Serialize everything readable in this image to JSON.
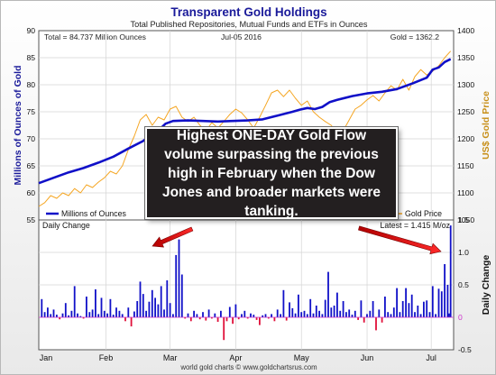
{
  "chart_data": {
    "title": "Transparent Gold Holdings",
    "subtitle": "Total Published Repositories, Mutual Funds and ETFs in Ounces",
    "info": {
      "total": "Total = 84.737 Million Ounces",
      "date": "Jul-05  2016",
      "gold": "Gold = 1362.2",
      "latest": "Latest = 1.415 M/oz"
    },
    "upper": {
      "type": "line",
      "ylabel_left": "Millions of Ounces of Gold",
      "ylabel_right": "US$ Gold Price",
      "yticks_left": [
        55,
        60,
        65,
        70,
        75,
        80,
        85,
        90
      ],
      "yticks_right": [
        1050,
        1100,
        1150,
        1200,
        1250,
        1300,
        1350,
        1400
      ],
      "ylim_left": [
        55,
        90
      ],
      "ylim_right": [
        1050,
        1400
      ],
      "colors": {
        "holdings": "#1010c8",
        "price": "#f5a623"
      },
      "legend": {
        "holdings": "Millions of Ounces",
        "price": "Gold Price"
      },
      "holdings_series": [
        [
          0,
          61.8
        ],
        [
          10,
          62.8
        ],
        [
          20,
          63.8
        ],
        [
          30,
          64.6
        ],
        [
          40,
          65.6
        ],
        [
          50,
          66.7
        ],
        [
          60,
          68.2
        ],
        [
          70,
          69.6
        ],
        [
          75,
          70.7
        ],
        [
          80,
          71.5
        ],
        [
          85,
          72.8
        ],
        [
          90,
          73.3
        ],
        [
          100,
          73.4
        ],
        [
          110,
          73.3
        ],
        [
          120,
          73.2
        ],
        [
          130,
          73.3
        ],
        [
          140,
          73.4
        ],
        [
          150,
          73.6
        ],
        [
          160,
          74.3
        ],
        [
          170,
          75.0
        ],
        [
          175,
          75.4
        ],
        [
          180,
          75.7
        ],
        [
          185,
          75.5
        ],
        [
          190,
          75.9
        ],
        [
          195,
          76.8
        ],
        [
          200,
          77.2
        ],
        [
          210,
          77.9
        ],
        [
          220,
          78.4
        ],
        [
          230,
          78.7
        ],
        [
          240,
          79.2
        ],
        [
          250,
          80.2
        ],
        [
          260,
          81.3
        ],
        [
          264,
          82.8
        ],
        [
          268,
          83.2
        ],
        [
          272,
          84.2
        ],
        [
          276,
          84.74
        ]
      ],
      "price_series": [
        [
          0,
          1075
        ],
        [
          4,
          1082
        ],
        [
          8,
          1095
        ],
        [
          12,
          1090
        ],
        [
          16,
          1100
        ],
        [
          20,
          1095
        ],
        [
          24,
          1108
        ],
        [
          28,
          1100
        ],
        [
          32,
          1115
        ],
        [
          36,
          1110
        ],
        [
          40,
          1120
        ],
        [
          44,
          1128
        ],
        [
          48,
          1140
        ],
        [
          52,
          1135
        ],
        [
          56,
          1150
        ],
        [
          60,
          1180
        ],
        [
          64,
          1205
        ],
        [
          68,
          1235
        ],
        [
          72,
          1245
        ],
        [
          76,
          1225
        ],
        [
          80,
          1240
        ],
        [
          84,
          1235
        ],
        [
          88,
          1255
        ],
        [
          92,
          1260
        ],
        [
          96,
          1240
        ],
        [
          100,
          1232
        ],
        [
          104,
          1240
        ],
        [
          108,
          1225
        ],
        [
          112,
          1215
        ],
        [
          116,
          1230
        ],
        [
          120,
          1220
        ],
        [
          124,
          1232
        ],
        [
          128,
          1245
        ],
        [
          132,
          1255
        ],
        [
          136,
          1248
        ],
        [
          140,
          1235
        ],
        [
          144,
          1220
        ],
        [
          148,
          1240
        ],
        [
          152,
          1262
        ],
        [
          156,
          1285
        ],
        [
          160,
          1290
        ],
        [
          164,
          1278
        ],
        [
          168,
          1290
        ],
        [
          172,
          1275
        ],
        [
          176,
          1262
        ],
        [
          180,
          1270
        ],
        [
          184,
          1250
        ],
        [
          188,
          1240
        ],
        [
          192,
          1232
        ],
        [
          196,
          1225
        ],
        [
          200,
          1210
        ],
        [
          204,
          1215
        ],
        [
          208,
          1235
        ],
        [
          212,
          1255
        ],
        [
          216,
          1262
        ],
        [
          220,
          1272
        ],
        [
          224,
          1280
        ],
        [
          228,
          1270
        ],
        [
          232,
          1285
        ],
        [
          236,
          1298
        ],
        [
          240,
          1290
        ],
        [
          244,
          1310
        ],
        [
          248,
          1290
        ],
        [
          252,
          1315
        ],
        [
          256,
          1328
        ],
        [
          260,
          1318
        ],
        [
          264,
          1325
        ],
        [
          268,
          1335
        ],
        [
          272,
          1350
        ],
        [
          276,
          1362.2
        ]
      ]
    },
    "lower": {
      "type": "bar",
      "label": "Daily Change",
      "ylabel_right": "Daily Change",
      "yticks": [
        -0.5,
        0,
        0.5,
        1,
        1.5
      ],
      "ytick_labels": [
        "-0.5",
        "0",
        "0.5",
        "1.0",
        "1.5"
      ],
      "ylim": [
        -0.5,
        1.5
      ],
      "colors": {
        "positive": "#1010c8",
        "negative": "#e0103a"
      },
      "bars": [
        [
          2,
          0.28
        ],
        [
          4,
          0.08
        ],
        [
          6,
          0.15
        ],
        [
          8,
          0.05
        ],
        [
          10,
          0.12
        ],
        [
          12,
          0.04
        ],
        [
          14,
          -0.03
        ],
        [
          16,
          0.06
        ],
        [
          18,
          0.22
        ],
        [
          20,
          0.03
        ],
        [
          22,
          0.1
        ],
        [
          24,
          0.48
        ],
        [
          26,
          0.06
        ],
        [
          28,
          0.02
        ],
        [
          30,
          -0.02
        ],
        [
          32,
          0.32
        ],
        [
          34,
          0.08
        ],
        [
          36,
          0.12
        ],
        [
          38,
          0.43
        ],
        [
          40,
          0.05
        ],
        [
          42,
          0.3
        ],
        [
          44,
          0.1
        ],
        [
          46,
          0.06
        ],
        [
          48,
          0.28
        ],
        [
          50,
          0.04
        ],
        [
          52,
          0.15
        ],
        [
          54,
          0.1
        ],
        [
          56,
          0.05
        ],
        [
          58,
          -0.06
        ],
        [
          60,
          0.15
        ],
        [
          62,
          -0.14
        ],
        [
          64,
          0.09
        ],
        [
          66,
          0.25
        ],
        [
          68,
          0.55
        ],
        [
          70,
          0.36
        ],
        [
          72,
          0.1
        ],
        [
          74,
          0.24
        ],
        [
          76,
          0.42
        ],
        [
          78,
          0.3
        ],
        [
          80,
          0.2
        ],
        [
          82,
          0.48
        ],
        [
          84,
          0.12
        ],
        [
          86,
          0.57
        ],
        [
          88,
          0.22
        ],
        [
          90,
          0.05
        ],
        [
          92,
          0.96
        ],
        [
          94,
          1.2
        ],
        [
          96,
          0.66
        ],
        [
          98,
          -0.02
        ],
        [
          100,
          0.06
        ],
        [
          102,
          -0.06
        ],
        [
          104,
          0.1
        ],
        [
          106,
          0.05
        ],
        [
          108,
          -0.03
        ],
        [
          110,
          0.08
        ],
        [
          112,
          -0.05
        ],
        [
          114,
          0.12
        ],
        [
          116,
          -0.02
        ],
        [
          118,
          0.06
        ],
        [
          120,
          -0.07
        ],
        [
          122,
          0.1
        ],
        [
          124,
          -0.35
        ],
        [
          126,
          -0.06
        ],
        [
          128,
          0.16
        ],
        [
          130,
          -0.1
        ],
        [
          132,
          0.2
        ],
        [
          134,
          -0.03
        ],
        [
          136,
          0.05
        ],
        [
          138,
          0.1
        ],
        [
          140,
          -0.02
        ],
        [
          142,
          0.06
        ],
        [
          144,
          0.04
        ],
        [
          146,
          -0.04
        ],
        [
          148,
          -0.12
        ],
        [
          150,
          0.03
        ],
        [
          152,
          0.05
        ],
        [
          154,
          -0.02
        ],
        [
          156,
          0.05
        ],
        [
          158,
          -0.06
        ],
        [
          160,
          0.12
        ],
        [
          162,
          0.05
        ],
        [
          164,
          0.42
        ],
        [
          166,
          -0.05
        ],
        [
          168,
          0.23
        ],
        [
          170,
          0.14
        ],
        [
          172,
          0.06
        ],
        [
          174,
          0.35
        ],
        [
          176,
          0.08
        ],
        [
          178,
          0.1
        ],
        [
          180,
          0.05
        ],
        [
          182,
          0.28
        ],
        [
          184,
          0.06
        ],
        [
          186,
          0.18
        ],
        [
          188,
          0.1
        ],
        [
          190,
          0.05
        ],
        [
          192,
          0.27
        ],
        [
          194,
          0.7
        ],
        [
          196,
          0.15
        ],
        [
          198,
          0.18
        ],
        [
          200,
          0.38
        ],
        [
          202,
          0.1
        ],
        [
          204,
          0.25
        ],
        [
          206,
          0.08
        ],
        [
          208,
          0.12
        ],
        [
          210,
          0.04
        ],
        [
          212,
          0.1
        ],
        [
          214,
          -0.04
        ],
        [
          216,
          0.26
        ],
        [
          218,
          -0.08
        ],
        [
          220,
          0.05
        ],
        [
          222,
          0.1
        ],
        [
          224,
          0.25
        ],
        [
          226,
          -0.2
        ],
        [
          228,
          0.12
        ],
        [
          230,
          -0.08
        ],
        [
          232,
          0.32
        ],
        [
          234,
          0.08
        ],
        [
          236,
          0.05
        ],
        [
          238,
          0.15
        ],
        [
          240,
          0.45
        ],
        [
          242,
          0.08
        ],
        [
          244,
          0.25
        ],
        [
          246,
          0.45
        ],
        [
          248,
          0.22
        ],
        [
          250,
          0.35
        ],
        [
          252,
          0.08
        ],
        [
          254,
          0.18
        ],
        [
          256,
          0.05
        ],
        [
          258,
          0.24
        ],
        [
          260,
          0.26
        ],
        [
          262,
          0.08
        ],
        [
          264,
          0.48
        ],
        [
          266,
          0.05
        ],
        [
          268,
          0.44
        ],
        [
          270,
          0.4
        ],
        [
          272,
          0.82
        ],
        [
          274,
          0.5
        ],
        [
          275,
          0.06
        ],
        [
          276,
          1.415
        ]
      ]
    },
    "x_axis": {
      "labels": [
        "Jan",
        "Feb",
        "Mar",
        "Apr",
        "May",
        "Jun",
        "Jul"
      ],
      "positions": [
        0,
        45,
        88,
        132,
        176,
        220,
        263
      ],
      "range": [
        0,
        278
      ]
    },
    "footer": "world gold charts © www.goldchartsrus.com",
    "annotation": "Highest ONE-DAY Gold Flow volume surpassing the previous high in February when the Dow Jones and broader markets were tanking."
  }
}
